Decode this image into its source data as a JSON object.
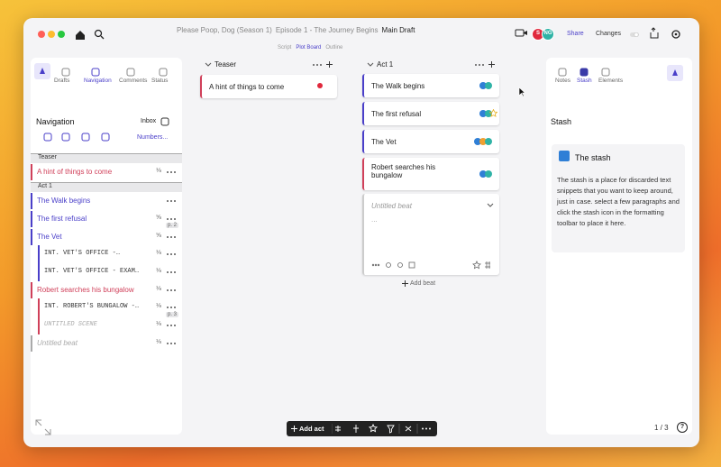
{
  "window": {
    "breadcrumb": {
      "project": "Please Poop, Dog (Season 1)",
      "episode": "Episode 1 - The Journey Begins",
      "draft": "Main Draft"
    },
    "view_tabs": [
      "Script",
      "Plot Board",
      "Outline"
    ],
    "active_view": 1,
    "avatars": [
      {
        "label": "S",
        "color": "#e0283c"
      },
      {
        "label": "NG",
        "color": "#2fb3a6"
      }
    ],
    "share": "Share",
    "changes": "Changes"
  },
  "left_panel": {
    "tabs": [
      "Drafts",
      "Navigation",
      "Comments",
      "Status"
    ],
    "active_tab": 1,
    "title": "Navigation",
    "inbox": "Inbox",
    "numbers": "Numbers...",
    "sections": [
      {
        "title": "Teaser",
        "items": [
          {
            "label": "A hint of things to come",
            "color": "#d0405a",
            "fraction": "⅛"
          }
        ]
      },
      {
        "title": "Act 1",
        "items": [
          {
            "label": "The Walk begins",
            "color": "#4a3fc9"
          },
          {
            "label": "The first refusal",
            "color": "#4a3fc9",
            "fraction": "⅝",
            "page": "p. 2"
          },
          {
            "label": "The Vet",
            "color": "#4a3fc9",
            "fraction": "⅝",
            "scenes": [
              {
                "label": "INT. VET'S OFFICE -…",
                "fraction": "⅛"
              },
              {
                "label": "INT. VET'S OFFICE - EXAM…",
                "fraction": "⅛"
              }
            ]
          },
          {
            "label": "Robert searches his bungalow",
            "color": "#d0405a",
            "fraction": "⅛",
            "scenes": [
              {
                "label": "INT. ROBERT'S BUNGALOW -…",
                "fraction": "⅛",
                "page": "p. 3"
              },
              {
                "label": "UNTITLED SCENE",
                "fraction": "⅛"
              }
            ]
          },
          {
            "label": "Untitled beat",
            "color": "#aaaaaa",
            "fraction": "⅛"
          }
        ]
      }
    ]
  },
  "board": {
    "columns": [
      {
        "title": "Teaser",
        "cards": [
          {
            "title": "A hint of things to come",
            "color": "#d0405a",
            "tags": [
              "#e0283c"
            ]
          }
        ]
      },
      {
        "title": "Act 1",
        "cards": [
          {
            "title": "The Walk begins",
            "color": "#4a3fc9",
            "tags": [
              "#2f7fd6",
              "#2fb3a6"
            ]
          },
          {
            "title": "The first refusal",
            "color": "#4a3fc9",
            "tags": [
              "#2f7fd6",
              "#2fb3a6"
            ]
          },
          {
            "title": "The Vet",
            "color": "#4a3fc9",
            "tags": [
              "#2f7fd6",
              "#f0a030",
              "#2fb3a6"
            ]
          },
          {
            "title": "Robert searches his bungalow",
            "color": "#d0405a",
            "tags": [
              "#2f7fd6",
              "#2fb3a6"
            ]
          }
        ],
        "draft_card": {
          "placeholder": "Untitled beat",
          "body": "..."
        },
        "add": "Add beat"
      }
    ]
  },
  "right_panel": {
    "tabs": [
      "Notes",
      "Stash",
      "Elements"
    ],
    "active_tab": 1,
    "title": "Stash",
    "card_title": "The stash",
    "card_text": "The stash is a place for discarded text snippets that you want to keep around, just in case. select a few paragraphs and click the stash icon in the formatting toolbar to place it here."
  },
  "toolbar": {
    "add_act": "Add act"
  },
  "pagination": "1 / 3",
  "help": "?"
}
